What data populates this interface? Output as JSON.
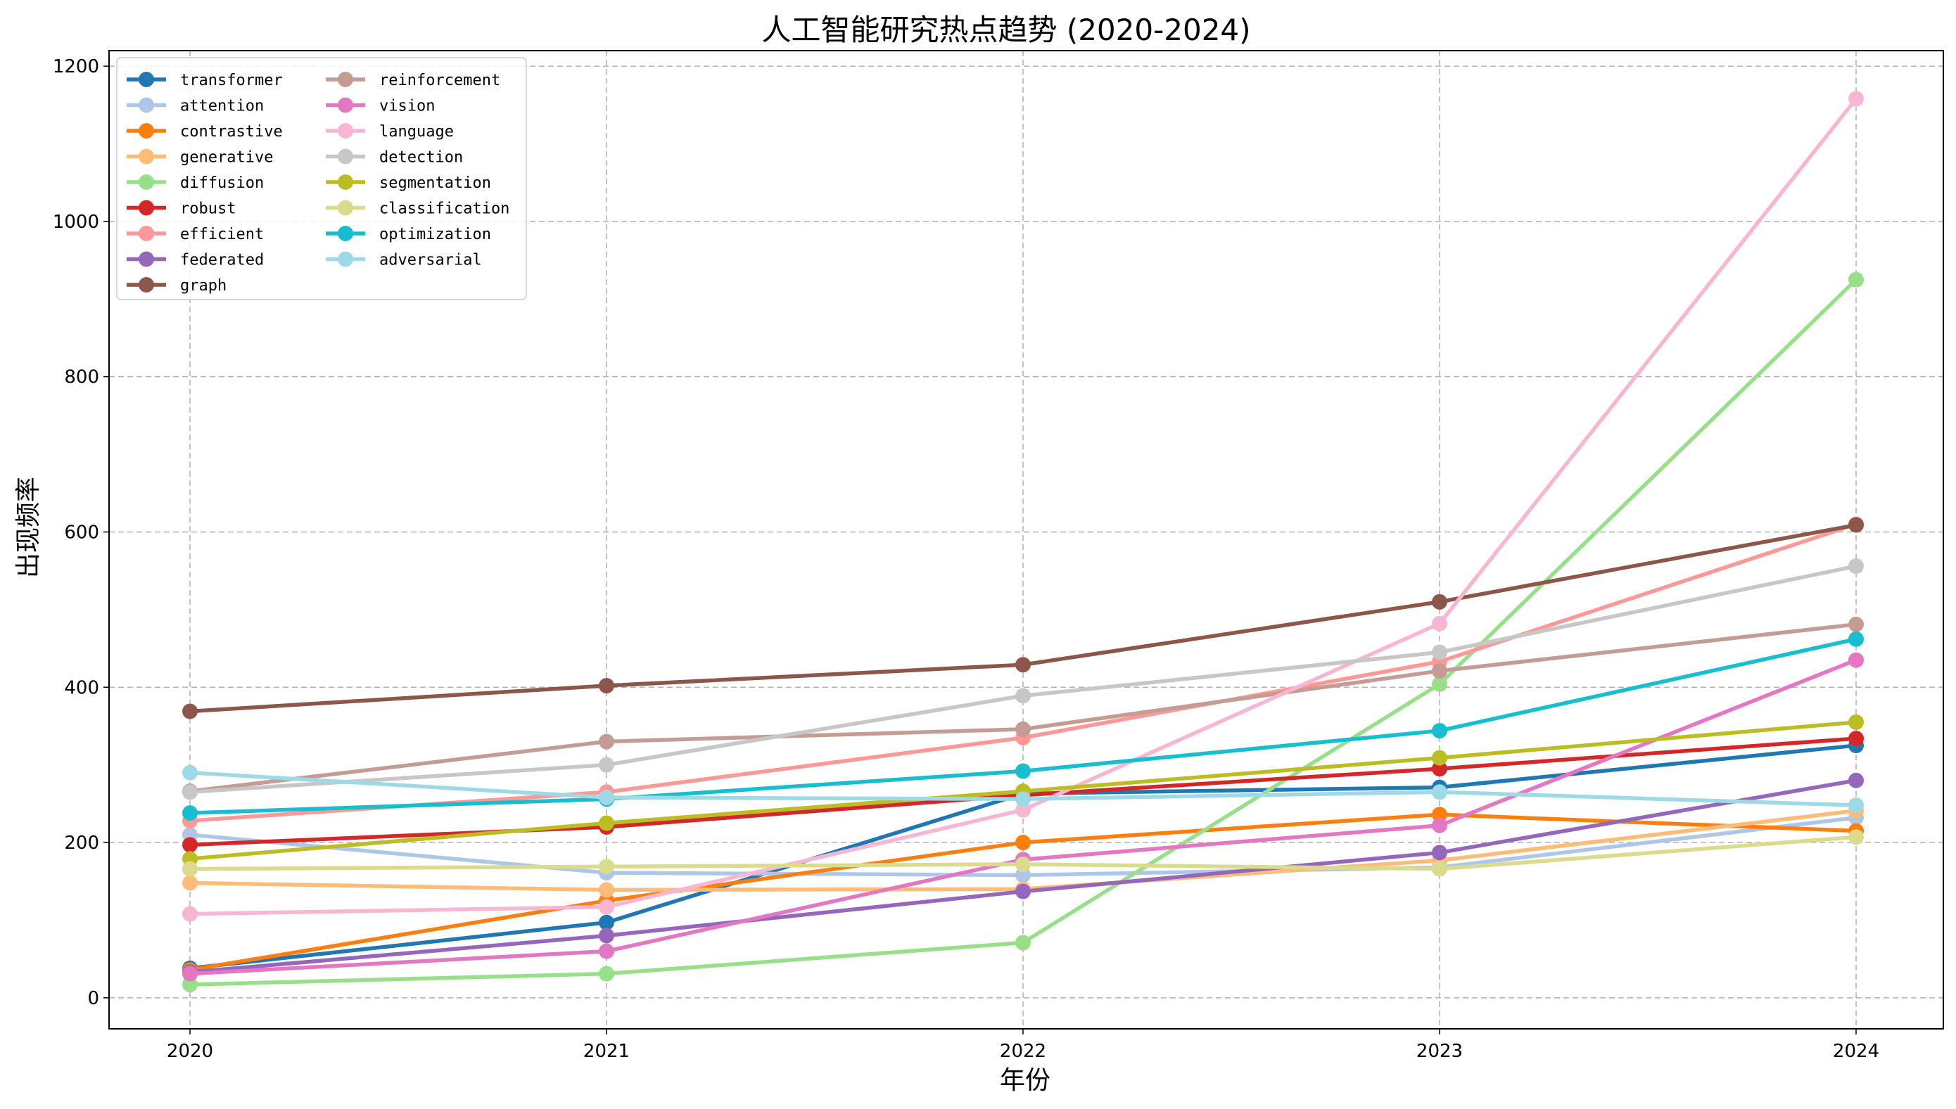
{
  "chart_data": {
    "type": "line",
    "title": "人工智能研究热点趋势 (2020-2024)",
    "xlabel": "年份",
    "ylabel": "出现频率",
    "x": [
      "2020",
      "2021",
      "2022",
      "2023",
      "2024"
    ],
    "yticks": [
      "0",
      "200",
      "400",
      "600",
      "800",
      "1000",
      "1200"
    ],
    "ylim": [
      -40,
      1220
    ],
    "grid": true,
    "legend_position": "top-left",
    "series": [
      {
        "name": "transformer",
        "color": "#1f77b4",
        "values": [
          38,
          97,
          263,
          271,
          325
        ]
      },
      {
        "name": "attention",
        "color": "#aec7e8",
        "values": [
          210,
          161,
          158,
          168,
          232
        ]
      },
      {
        "name": "contrastive",
        "color": "#ff7f0e",
        "values": [
          36,
          125,
          200,
          236,
          215
        ]
      },
      {
        "name": "generative",
        "color": "#ffbb78",
        "values": [
          148,
          139,
          140,
          177,
          241
        ]
      },
      {
        "name": "diffusion",
        "color": "#98df8a",
        "values": [
          17,
          31,
          71,
          404,
          925
        ]
      },
      {
        "name": "robust",
        "color": "#d62728",
        "values": [
          197,
          220,
          261,
          295,
          334
        ]
      },
      {
        "name": "efficient",
        "color": "#ff9896",
        "values": [
          228,
          265,
          335,
          433,
          610
        ]
      },
      {
        "name": "federated",
        "color": "#9467bd",
        "values": [
          33,
          80,
          137,
          187,
          280
        ]
      },
      {
        "name": "graph",
        "color": "#8c564b",
        "values": [
          369,
          402,
          429,
          510,
          609
        ]
      },
      {
        "name": "reinforcement",
        "color": "#c49c94",
        "values": [
          266,
          330,
          346,
          421,
          481
        ]
      },
      {
        "name": "vision",
        "color": "#e377c2",
        "values": [
          31,
          60,
          178,
          222,
          435
        ]
      },
      {
        "name": "language",
        "color": "#f7b6d2",
        "values": [
          108,
          117,
          242,
          482,
          1158
        ]
      },
      {
        "name": "detection",
        "color": "#c7c7c7",
        "values": [
          265,
          300,
          389,
          445,
          556
        ]
      },
      {
        "name": "segmentation",
        "color": "#bcbd22",
        "values": [
          179,
          225,
          266,
          309,
          355
        ]
      },
      {
        "name": "classification",
        "color": "#dbdb8d",
        "values": [
          166,
          169,
          172,
          166,
          207
        ]
      },
      {
        "name": "optimization",
        "color": "#17becf",
        "values": [
          238,
          256,
          292,
          344,
          462
        ]
      },
      {
        "name": "adversarial",
        "color": "#9edae5",
        "values": [
          290,
          258,
          256,
          265,
          248
        ]
      }
    ]
  }
}
